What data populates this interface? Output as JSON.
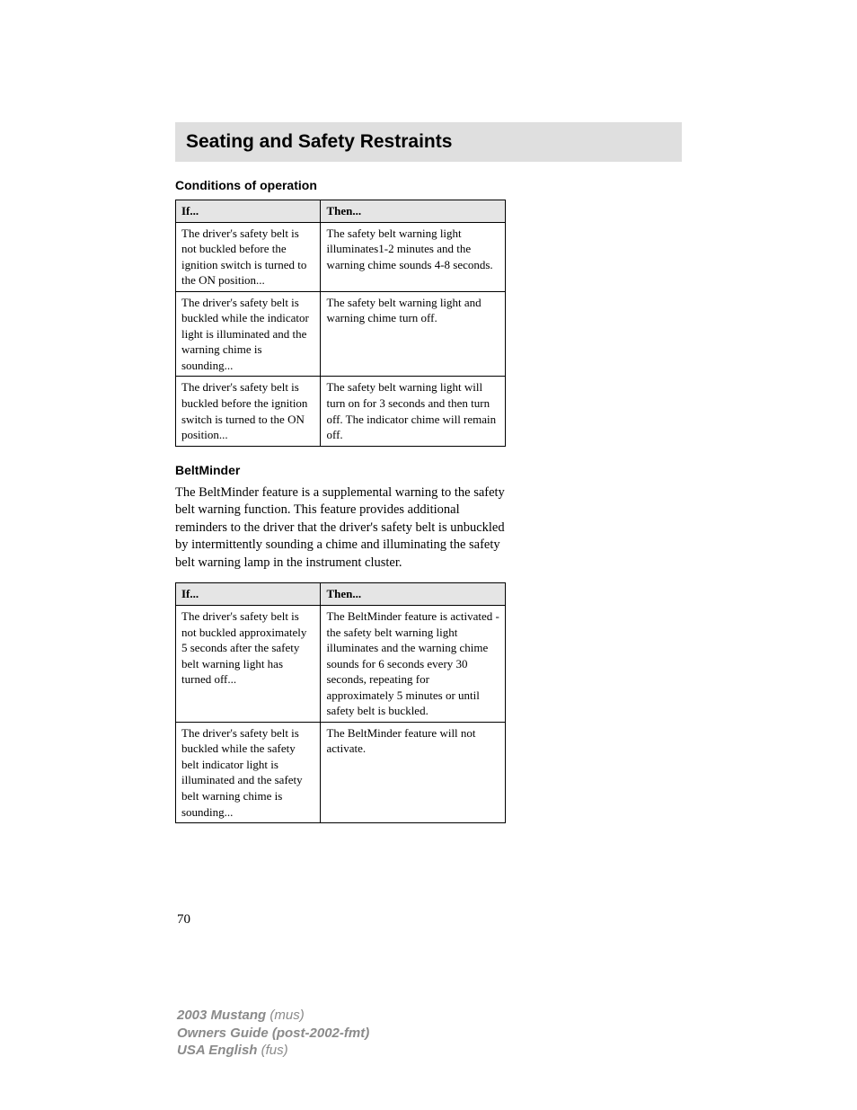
{
  "section": {
    "title": "Seating and Safety Restraints"
  },
  "subsections": {
    "conditions": {
      "heading": "Conditions of operation"
    },
    "beltminder": {
      "heading": "BeltMinder",
      "paragraph": "The BeltMinder feature is a supplemental warning to the safety belt warning function. This feature provides additional reminders to the driver that the driver's safety belt is unbuckled by intermittently sounding a chime and illuminating the safety belt warning lamp in the instrument cluster."
    }
  },
  "table1": {
    "columns": [
      "If...",
      "Then..."
    ],
    "rows": [
      {
        "if": "The driver's safety belt is not buckled before the ignition switch is turned to the ON position...",
        "then": "The safety belt warning light illuminates1-2 minutes and the warning chime sounds 4-8 seconds."
      },
      {
        "if": "The driver's safety belt is buckled while the indicator light is illuminated and the warning chime is sounding...",
        "then": "The safety belt warning light and warning chime turn off."
      },
      {
        "if": "The driver's safety belt is buckled before the ignition switch is turned to the ON position...",
        "then": "The safety belt warning light will turn on for 3 seconds and then turn off. The indicator chime will remain off."
      }
    ]
  },
  "table2": {
    "columns": [
      "If...",
      "Then..."
    ],
    "rows": [
      {
        "if": "The driver's safety belt is not buckled approximately 5 seconds after the safety belt warning light has turned off...",
        "then": "The BeltMinder feature is activated - the safety belt warning light illuminates and the warning chime sounds for 6 seconds every 30 seconds, repeating for approximately 5 minutes or until safety belt is buckled."
      },
      {
        "if": "The driver's safety belt is buckled while the safety belt indicator light is illuminated and the safety belt warning chime is sounding...",
        "then": "The BeltMinder feature will not activate."
      }
    ]
  },
  "pageNumber": "70",
  "footer": {
    "line1_bold": "2003 Mustang ",
    "line1_italic": "(mus)",
    "line2_bold": "Owners Guide (post-2002-fmt)",
    "line3_bold": "USA English ",
    "line3_italic": "(fus)"
  },
  "styles": {
    "header_bg": "#dfdfdf",
    "table_header_bg": "#e5e5e5",
    "footer_color": "#8a8a8a",
    "text_color": "#000000",
    "section_title_fontsize": 21,
    "subsection_heading_fontsize": 14,
    "table_fontsize": 13,
    "body_fontsize": 14.5,
    "footer_fontsize": 15
  }
}
